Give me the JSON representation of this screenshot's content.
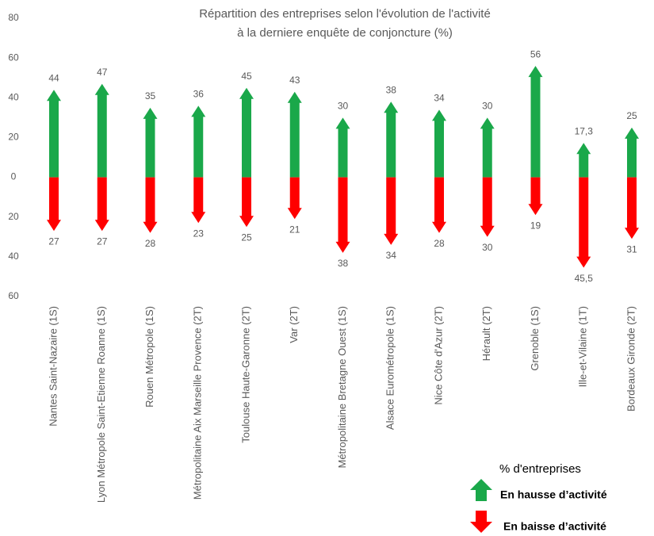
{
  "chart_data": {
    "type": "arrow-bar",
    "title": [
      "Répartition des entreprises selon l'évolution de l'activité",
      "à la derniere enquête de conjoncture (%)"
    ],
    "categories": [
      "Nantes Saint-Nazaire (1S)",
      "Lyon Métropole Saint-Etienne Roanne (1S)",
      "Rouen Métropole (1S)",
      "Métropolitaine Aix Marseille Provence (2T)",
      "Toulouse Haute-Garonne (2T)",
      "Var (2T)",
      "Métropolitaine Bretagne Ouest (1S)",
      "Alsace Eurométropole (1S)",
      "Nice Côte d'Azur (2T)",
      "Hérault (2T)",
      "Grenoble (1S)",
      "Ille-et-Vilaine (1T)",
      "Bordeaux Gironde (2T)"
    ],
    "series": [
      {
        "name": "En hausse d’activité",
        "color": "#1aa84a",
        "values": [
          44,
          47,
          35,
          36,
          45,
          43,
          30,
          38,
          34,
          30,
          56,
          17.3,
          25
        ],
        "value_labels": [
          "44",
          "47",
          "35",
          "36",
          "45",
          "43",
          "30",
          "38",
          "34",
          "30",
          "56",
          "17,3",
          "25"
        ]
      },
      {
        "name": "En baisse d’activité",
        "color": "#ff0000",
        "values": [
          -27,
          -27,
          -28,
          -23,
          -25,
          -21,
          -38,
          -34,
          -28,
          -30,
          -19,
          -45.5,
          -31
        ],
        "value_labels": [
          "27",
          "27",
          "28",
          "23",
          "25",
          "21",
          "38",
          "34",
          "28",
          "30",
          "19",
          "45,5",
          "31"
        ]
      }
    ],
    "legend_title": "% d'entreprises",
    "ylim": [
      -60,
      80
    ],
    "yticks": [
      {
        "value": -60,
        "label": "60"
      },
      {
        "value": -40,
        "label": "40"
      },
      {
        "value": -20,
        "label": "20"
      },
      0,
      20,
      40,
      60,
      80
    ],
    "grid": false
  }
}
